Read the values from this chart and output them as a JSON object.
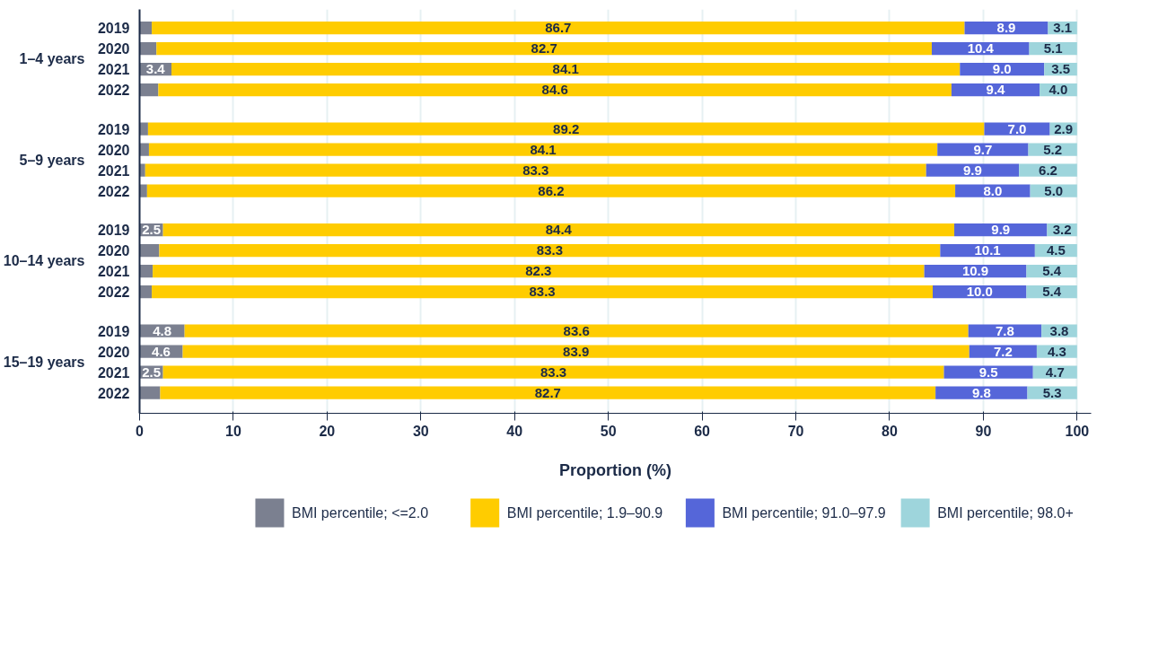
{
  "chart_data": {
    "type": "bar",
    "orientation": "horizontal",
    "stacked": true,
    "xlabel": "Proportion (%)",
    "categories": [
      "2019",
      "2020",
      "2021",
      "2022",
      "2019",
      "2020",
      "2021",
      "2022",
      "2019",
      "2020",
      "2021",
      "2022",
      "2019",
      "2020",
      "2021",
      "2022"
    ],
    "annotations": [
      "1–4 years",
      "5–9 years",
      "10–14 years",
      "15–19 years"
    ],
    "series": [
      {
        "name": "BMI percentile; <=2.0",
        "color": "#7b8090",
        "values": [
          1.3,
          1.8,
          3.4,
          2.0,
          0.9,
          1.0,
          0.6,
          0.8,
          2.5,
          2.1,
          1.4,
          1.3,
          4.8,
          4.6,
          2.5,
          2.2
        ],
        "value_labels": [
          null,
          null,
          "3.4",
          null,
          null,
          null,
          null,
          null,
          "2.5",
          null,
          null,
          null,
          "4.8",
          "4.6",
          "2.5",
          null
        ]
      },
      {
        "name": "BMI percentile; 1.9–90.9",
        "color": "#ffcc00",
        "values": [
          86.7,
          82.7,
          84.1,
          84.6,
          89.2,
          84.1,
          83.3,
          86.2,
          84.4,
          83.3,
          82.3,
          83.3,
          83.6,
          83.9,
          83.3,
          82.7
        ],
        "value_labels": [
          "86.7",
          "82.7",
          "84.1",
          "84.6",
          "89.2",
          "84.1",
          "83.3",
          "86.2",
          "84.4",
          "83.3",
          "82.3",
          "83.3",
          "83.6",
          "83.9",
          "83.3",
          "82.7"
        ]
      },
      {
        "name": "BMI percentile; 91.0–97.9",
        "color": "#5566d9",
        "values": [
          8.9,
          10.4,
          9.0,
          9.4,
          7.0,
          9.7,
          9.9,
          8.0,
          9.9,
          10.1,
          10.9,
          10.0,
          7.8,
          7.2,
          9.5,
          9.8
        ],
        "value_labels": [
          "8.9",
          "10.4",
          "9.0",
          "9.4",
          "7.0",
          "9.7",
          "9.9",
          "8.0",
          "9.9",
          "10.1",
          "10.9",
          "10.0",
          "7.8",
          "7.2",
          "9.5",
          "9.8"
        ]
      },
      {
        "name": "BMI percentile; 98.0+",
        "color": "#9ed5dc",
        "values": [
          3.1,
          5.1,
          3.5,
          4.0,
          2.9,
          5.2,
          6.2,
          5.0,
          3.2,
          4.5,
          5.4,
          5.4,
          3.8,
          4.3,
          4.7,
          5.3
        ],
        "value_labels": [
          "3.1",
          "5.1",
          "3.5",
          "4.0",
          "2.9",
          "5.2",
          "6.2",
          "5.0",
          "3.2",
          "4.5",
          "5.4",
          "5.4",
          "3.8",
          "4.3",
          "4.7",
          "5.3"
        ]
      }
    ],
    "xlim": [
      0,
      101.5
    ],
    "xticks": [
      0,
      10,
      20,
      30,
      40,
      50,
      60,
      70,
      80,
      90,
      100
    ],
    "grid": "x",
    "legend": "bottom"
  }
}
